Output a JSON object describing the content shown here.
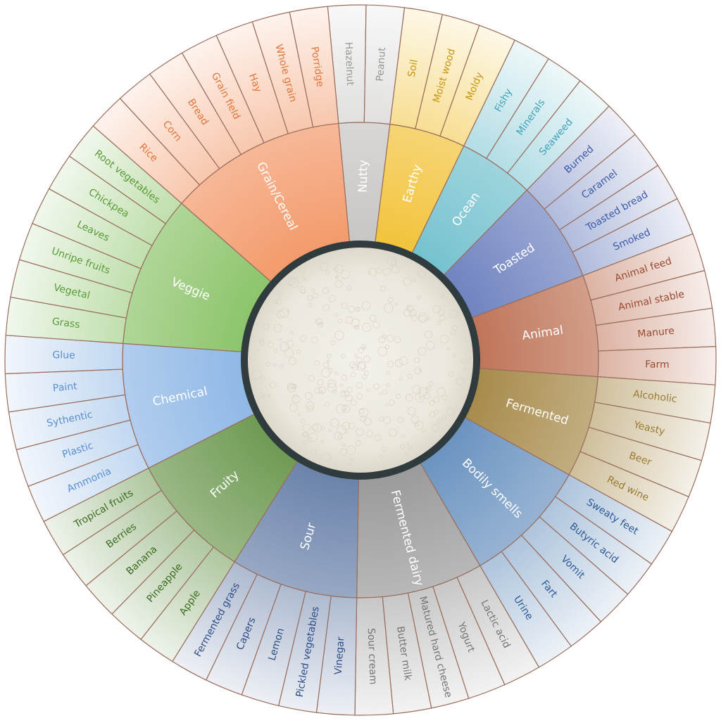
{
  "wheel": {
    "categories": [
      {
        "name": "Nutty",
        "color": "#c8c6c4",
        "text": "#9a9894",
        "items": [
          "Hazelnut",
          "Peanut"
        ]
      },
      {
        "name": "Earthy",
        "color": "#f2c33a",
        "text": "#c99516",
        "items": [
          "Soil",
          "Moist wood",
          "Moldy"
        ]
      },
      {
        "name": "Ocean",
        "color": "#74c2cf",
        "text": "#3ea3b8",
        "items": [
          "Fishy",
          "Minerals",
          "Seaweed"
        ]
      },
      {
        "name": "Toasted",
        "color": "#6f83c0",
        "text": "#3c59a8",
        "items": [
          "Burned",
          "Caramel",
          "Toasted bread",
          "Smoked"
        ]
      },
      {
        "name": "Animal",
        "color": "#bf7458",
        "text": "#9a4a32",
        "items": [
          "Animal feed",
          "Animal stable",
          "Manure",
          "Farm"
        ]
      },
      {
        "name": "Fermented",
        "color": "#a78a4a",
        "text": "#9a7a30",
        "items": [
          "Alcoholic",
          "Yeasty",
          "Beer",
          "Red wine"
        ]
      },
      {
        "name": "Bodily smells",
        "color": "#6a93c0",
        "text": "#2e5a96",
        "items": [
          "Sweaty feet",
          "Butyric acid",
          "Vomit",
          "Fart",
          "Urine"
        ]
      },
      {
        "name": "Fermented dairy",
        "color": "#9a9a9a",
        "text": "#757575",
        "items": [
          "Lactic acid",
          "Yogurt",
          "Matured hard cheese",
          "Butter milk",
          "Sour cream"
        ]
      },
      {
        "name": "Sour",
        "color": "#6a82aa",
        "text": "#2f4c86",
        "items": [
          "Vinegar",
          "Pickled vegetables",
          "Lemon",
          "Capers",
          "Fermented grass"
        ]
      },
      {
        "name": "Fruity",
        "color": "#6e9a52",
        "text": "#3c6a1e",
        "items": [
          "Apple",
          "Pineapple",
          "Banana",
          "Berries",
          "Tropical fruits"
        ]
      },
      {
        "name": "Chemical",
        "color": "#8fb8e6",
        "text": "#5a8ed0",
        "items": [
          "Ammonia",
          "Plastic",
          "Sythentic",
          "Paint",
          "Glue"
        ]
      },
      {
        "name": "Veggie",
        "color": "#8cc46a",
        "text": "#5a9a36",
        "items": [
          "Grass",
          "Vegetal",
          "Unripe fruits",
          "Leaves",
          "Chickpea",
          "Root vegetables"
        ]
      },
      {
        "name": "Grain/Cereal",
        "color": "#f39a6a",
        "text": "#e0763a",
        "items": [
          "Rice",
          "Corn",
          "Bread",
          "Grain field",
          "Hay",
          "Whole grain",
          "Porridge"
        ]
      }
    ],
    "border_color": "#9a6d5c"
  }
}
